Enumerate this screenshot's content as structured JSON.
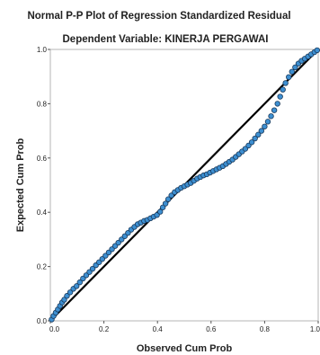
{
  "chart_data": {
    "type": "scatter",
    "title": "Normal P-P Plot of Regression Standardized Residual",
    "subtitle": "Dependent Variable: KINERJA PERGAWAI",
    "xlabel": "Observed Cum Prob",
    "ylabel": "Expected Cum Prob",
    "xlim": [
      0,
      1
    ],
    "ylim": [
      0,
      1
    ],
    "x_ticks": [
      "0.0",
      "0.2",
      "0.4",
      "0.6",
      "0.8",
      "1.0"
    ],
    "y_ticks": [
      "0.0",
      "0.2",
      "0.4",
      "0.6",
      "0.8",
      "1.0"
    ],
    "grid": false,
    "colors": {
      "point_fill": "#3d8fd1",
      "point_stroke": "#1a3a5c",
      "line": "#000000"
    },
    "reference_line": {
      "x": [
        0,
        1
      ],
      "y": [
        0,
        1
      ]
    },
    "points": [
      [
        0.005,
        0.005
      ],
      [
        0.012,
        0.018
      ],
      [
        0.02,
        0.03
      ],
      [
        0.028,
        0.042
      ],
      [
        0.036,
        0.055
      ],
      [
        0.044,
        0.068
      ],
      [
        0.052,
        0.078
      ],
      [
        0.062,
        0.092
      ],
      [
        0.074,
        0.105
      ],
      [
        0.086,
        0.118
      ],
      [
        0.098,
        0.128
      ],
      [
        0.11,
        0.142
      ],
      [
        0.122,
        0.156
      ],
      [
        0.134,
        0.168
      ],
      [
        0.146,
        0.18
      ],
      [
        0.158,
        0.192
      ],
      [
        0.17,
        0.205
      ],
      [
        0.182,
        0.216
      ],
      [
        0.194,
        0.228
      ],
      [
        0.206,
        0.24
      ],
      [
        0.218,
        0.252
      ],
      [
        0.23,
        0.264
      ],
      [
        0.242,
        0.276
      ],
      [
        0.254,
        0.288
      ],
      [
        0.266,
        0.3
      ],
      [
        0.278,
        0.312
      ],
      [
        0.29,
        0.324
      ],
      [
        0.302,
        0.336
      ],
      [
        0.314,
        0.346
      ],
      [
        0.326,
        0.356
      ],
      [
        0.338,
        0.362
      ],
      [
        0.35,
        0.368
      ],
      [
        0.362,
        0.372
      ],
      [
        0.374,
        0.378
      ],
      [
        0.386,
        0.384
      ],
      [
        0.398,
        0.39
      ],
      [
        0.41,
        0.402
      ],
      [
        0.42,
        0.418
      ],
      [
        0.43,
        0.432
      ],
      [
        0.44,
        0.448
      ],
      [
        0.452,
        0.462
      ],
      [
        0.464,
        0.474
      ],
      [
        0.476,
        0.482
      ],
      [
        0.488,
        0.49
      ],
      [
        0.5,
        0.496
      ],
      [
        0.512,
        0.502
      ],
      [
        0.524,
        0.508
      ],
      [
        0.536,
        0.516
      ],
      [
        0.548,
        0.524
      ],
      [
        0.56,
        0.53
      ],
      [
        0.572,
        0.536
      ],
      [
        0.584,
        0.54
      ],
      [
        0.596,
        0.546
      ],
      [
        0.608,
        0.552
      ],
      [
        0.62,
        0.558
      ],
      [
        0.632,
        0.564
      ],
      [
        0.644,
        0.57
      ],
      [
        0.656,
        0.578
      ],
      [
        0.668,
        0.586
      ],
      [
        0.68,
        0.594
      ],
      [
        0.692,
        0.604
      ],
      [
        0.704,
        0.614
      ],
      [
        0.716,
        0.624
      ],
      [
        0.728,
        0.634
      ],
      [
        0.74,
        0.646
      ],
      [
        0.752,
        0.658
      ],
      [
        0.764,
        0.672
      ],
      [
        0.776,
        0.686
      ],
      [
        0.788,
        0.7
      ],
      [
        0.8,
        0.716
      ],
      [
        0.812,
        0.734
      ],
      [
        0.824,
        0.754
      ],
      [
        0.836,
        0.776
      ],
      [
        0.848,
        0.8
      ],
      [
        0.858,
        0.826
      ],
      [
        0.868,
        0.852
      ],
      [
        0.878,
        0.876
      ],
      [
        0.89,
        0.898
      ],
      [
        0.902,
        0.918
      ],
      [
        0.914,
        0.934
      ],
      [
        0.926,
        0.948
      ],
      [
        0.938,
        0.958
      ],
      [
        0.95,
        0.966
      ],
      [
        0.962,
        0.974
      ],
      [
        0.974,
        0.982
      ],
      [
        0.986,
        0.99
      ],
      [
        0.996,
        0.997
      ]
    ]
  }
}
